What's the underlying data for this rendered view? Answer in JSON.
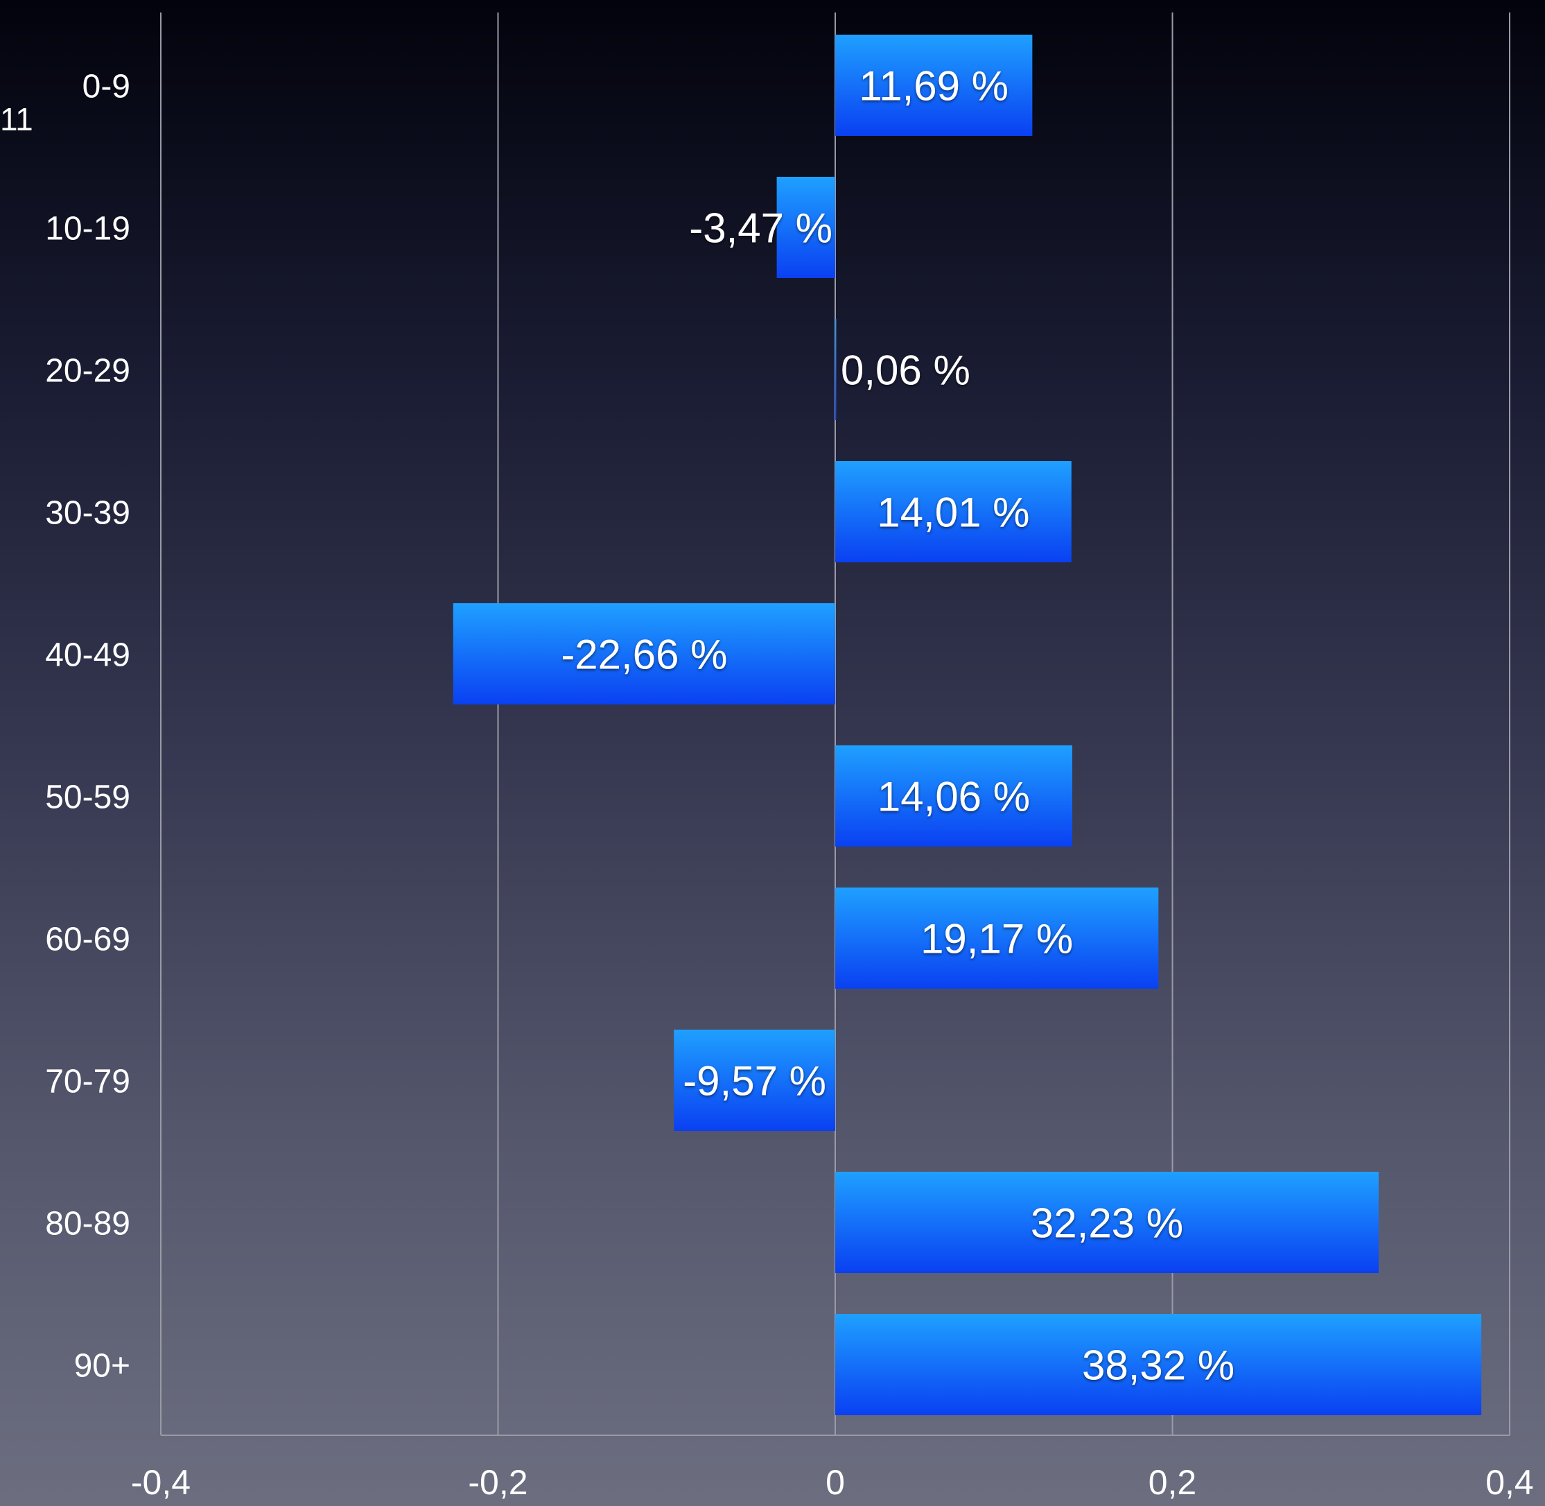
{
  "corner_label": "11",
  "colors": {
    "bar_top": "#1fa0ff",
    "bar_bottom": "#0a40f2",
    "grid": "#9a9aa6",
    "text": "#ffffff"
  },
  "chart_data": {
    "type": "bar",
    "orientation": "horizontal",
    "title": "",
    "xlabel": "",
    "ylabel": "",
    "categories": [
      "0-9",
      "10-19",
      "20-29",
      "30-39",
      "40-49",
      "50-59",
      "60-69",
      "70-79",
      "80-89",
      "90+"
    ],
    "values": [
      0.1169,
      -0.0347,
      0.0006,
      0.1401,
      -0.2266,
      0.1406,
      0.1917,
      -0.0957,
      0.3223,
      0.3832
    ],
    "data_labels": [
      "11,69 %",
      "-3,47 %",
      "0,06 %",
      "14,01 %",
      "-22,66 %",
      "14,06 %",
      "19,17 %",
      "-9,57 %",
      "32,23 %",
      "38,32 %"
    ],
    "xlim": [
      -0.4,
      0.4
    ],
    "x_ticks": [
      -0.4,
      -0.2,
      0,
      0.2,
      0.4
    ],
    "x_tick_labels": [
      "-0,4",
      "-0,2",
      "0",
      "0,2",
      "0,4"
    ],
    "grid": true,
    "legend": "none"
  }
}
